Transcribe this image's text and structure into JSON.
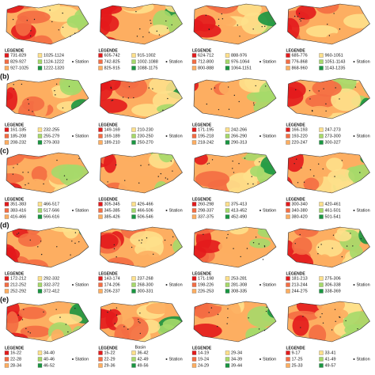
{
  "rows": [
    {
      "panels": [
        {
          "legend_title": "LEGENDE",
          "classes": [
            "731-829",
            "829-927",
            "927-1025",
            "1025-1124",
            "1124-1222",
            "1222-1320"
          ],
          "station": "Station"
        },
        {
          "legend_title": "LEGENDE",
          "classes": [
            "605-742",
            "742-825",
            "825-915",
            "915-1002",
            "1002-1088",
            "1088-1175"
          ],
          "station": "Station"
        },
        {
          "legend_title": "LEGENDE",
          "classes": [
            "624-712",
            "712-800",
            "800-888",
            "888-976",
            "976-1064",
            "1064-1151"
          ],
          "station": "Station"
        },
        {
          "legend_title": "LEGENDE",
          "classes": [
            "685-776",
            "776-868",
            "868-960",
            "960-1051",
            "1051-1143",
            "1143-1235"
          ],
          "station": "Station"
        }
      ]
    },
    {
      "label": "(b)",
      "panels": [
        {
          "legend_title": "LEGENDE",
          "classes": [
            "161-185",
            "185-208",
            "208-232",
            "232-255",
            "255-279",
            "279-303"
          ],
          "station": "Station"
        },
        {
          "legend_title": "LEGENDE",
          "classes": [
            "149-169",
            "169-189",
            "189-210",
            "210-230",
            "230-250",
            "250-270"
          ],
          "station": "Station"
        },
        {
          "legend_title": "LEGENDE",
          "classes": [
            "171-195",
            "195-218",
            "218-242",
            "242-266",
            "266-290",
            "290-313"
          ],
          "station": "Station"
        },
        {
          "legend_title": "LEGENDE",
          "classes": [
            "166-193",
            "193-220",
            "220-247",
            "247-273",
            "273-300",
            "300-327"
          ],
          "station": "Station"
        }
      ]
    },
    {
      "label": "(c)",
      "panels": [
        {
          "legend_title": "LEGENDE",
          "classes": [
            "351-383",
            "383-416",
            "416-466",
            "466-517",
            "517-566",
            "566-616"
          ],
          "station": "Station"
        },
        {
          "legend_title": "LEGENDE",
          "classes": [
            "305-345",
            "345-385",
            "385-426",
            "426-466",
            "466-506",
            "506-546"
          ],
          "station": "Station"
        },
        {
          "legend_title": "LEGENDE",
          "classes": [
            "260-298",
            "298-337",
            "337-375",
            "375-413",
            "413-452",
            "452-490"
          ],
          "station": "Station"
        },
        {
          "legend_title": "LEGENDE",
          "classes": [
            "300-340",
            "340-380",
            "380-420",
            "420-461",
            "461-501",
            "501-541"
          ],
          "station": "Station"
        }
      ]
    },
    {
      "label": "(d)",
      "panels": [
        {
          "legend_title": "LEGENDE",
          "classes": [
            "172-212",
            "212-252",
            "252-292",
            "292-332",
            "332-372",
            "372-412"
          ],
          "station": "Station"
        },
        {
          "legend_title": "LEGENDE",
          "classes": [
            "143-174",
            "174-206",
            "206-237",
            "237-268",
            "268-300",
            "300-331"
          ],
          "station": "Station"
        },
        {
          "legend_title": "LEGENDE",
          "classes": [
            "171-198",
            "198-226",
            "226-253",
            "253-281",
            "281-308",
            "308-335"
          ],
          "station": "Station"
        },
        {
          "legend_title": "LEGENDE",
          "classes": [
            "181-213",
            "213-244",
            "244-275",
            "275-306",
            "306-338",
            "338-369"
          ],
          "station": "Station"
        }
      ]
    },
    {
      "label": "(e)",
      "panels": [
        {
          "legend_title": "LEGENDE",
          "classes": [
            "16-22",
            "22-28",
            "28-34",
            "34-40",
            "40-46",
            "46-52"
          ],
          "station": "Station"
        },
        {
          "legend_title": "LEGENDE",
          "classes": [
            "15-22",
            "22-29",
            "29-36",
            "36-42",
            "42-49",
            "49-56"
          ],
          "station": "Station",
          "basin_label": "Basin"
        },
        {
          "legend_title": "LEGENDE",
          "classes": [
            "14-19",
            "19-24",
            "24-29",
            "29-34",
            "34-39",
            "39-44"
          ],
          "station": "Station"
        },
        {
          "legend_title": "LEGENDE",
          "classes": [
            "9-17",
            "17-25",
            "25-33",
            "33-41",
            "41-49",
            "49-57"
          ],
          "station": "Station"
        }
      ]
    }
  ]
}
